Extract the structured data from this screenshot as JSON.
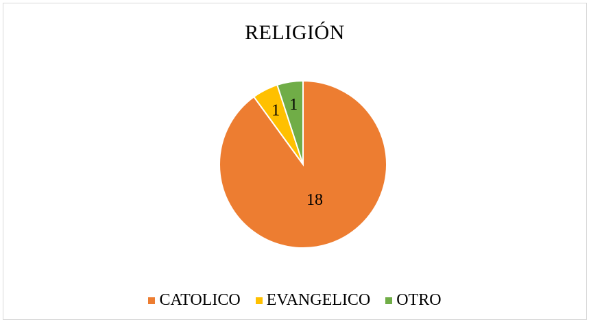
{
  "chart_data": {
    "type": "pie",
    "title": "RELIGIÓN",
    "categories": [
      "CATOLICO",
      "EVANGELICO",
      "OTRO"
    ],
    "values": [
      18,
      1,
      1
    ],
    "colors": [
      "#ed7d31",
      "#ffc000",
      "#70ad47"
    ],
    "data_labels": [
      "18",
      "1",
      "1"
    ],
    "legend_position": "bottom",
    "start_angle": "12 o'clock, clockwise order: CATOLICO, EVANGELICO, OTRO"
  }
}
